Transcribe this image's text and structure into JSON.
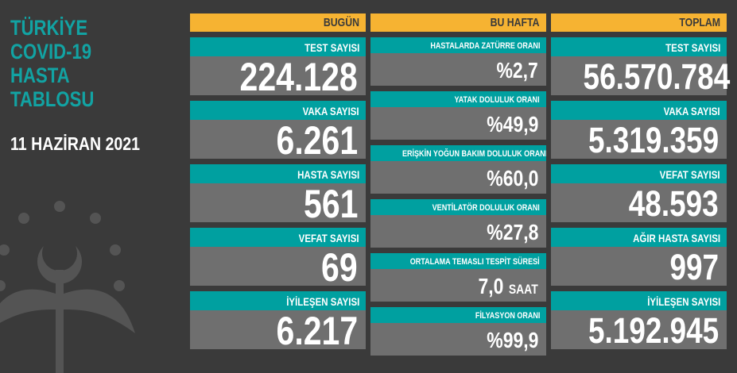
{
  "title": [
    "TÜRKİYE",
    "COVID-19",
    "HASTA",
    "TABLOSU"
  ],
  "date": "11 HAZİRAN 2021",
  "colors": {
    "background": "#3a3a3a",
    "header": "#f6b332",
    "label": "#00a0a0",
    "value_bg": "#6f6f6f",
    "title": "#12a3a3"
  },
  "columns": [
    {
      "header": "BUGÜN",
      "cards": [
        {
          "label": "TEST SAYISI",
          "value": "224.128"
        },
        {
          "label": "VAKA SAYISI",
          "value": "6.261"
        },
        {
          "label": "HASTA SAYISI",
          "value": "561"
        },
        {
          "label": "VEFAT SAYISI",
          "value": "69"
        },
        {
          "label": "İYİLEŞEN SAYISI",
          "value": "6.217"
        }
      ]
    },
    {
      "header": "BU HAFTA",
      "cards": [
        {
          "label": "HASTALARDA ZATÜRRE ORANI",
          "value": "%2,7"
        },
        {
          "label": "YATAK DOLULUK ORANI",
          "value": "%49,9"
        },
        {
          "label": "ERİŞKİN YOĞUN BAKIM DOLULUK ORANI",
          "value": "%60,0"
        },
        {
          "label": "VENTİLATÖR DOLULUK ORANI",
          "value": "%27,8"
        },
        {
          "label": "ORTALAMA TEMASLI TESPİT SÜRESİ",
          "value": "7,0",
          "unit": "SAAT"
        },
        {
          "label": "FİLYASYON ORANI",
          "value": "%99,9"
        }
      ]
    },
    {
      "header": "TOPLAM",
      "cards": [
        {
          "label": "TEST SAYISI",
          "value": "56.570.784"
        },
        {
          "label": "VAKA SAYISI",
          "value": "5.319.359"
        },
        {
          "label": "VEFAT SAYISI",
          "value": "48.593"
        },
        {
          "label": "AĞIR HASTA SAYISI",
          "value": "997"
        },
        {
          "label": "İYİLEŞEN SAYISI",
          "value": "5.192.945"
        }
      ]
    }
  ]
}
